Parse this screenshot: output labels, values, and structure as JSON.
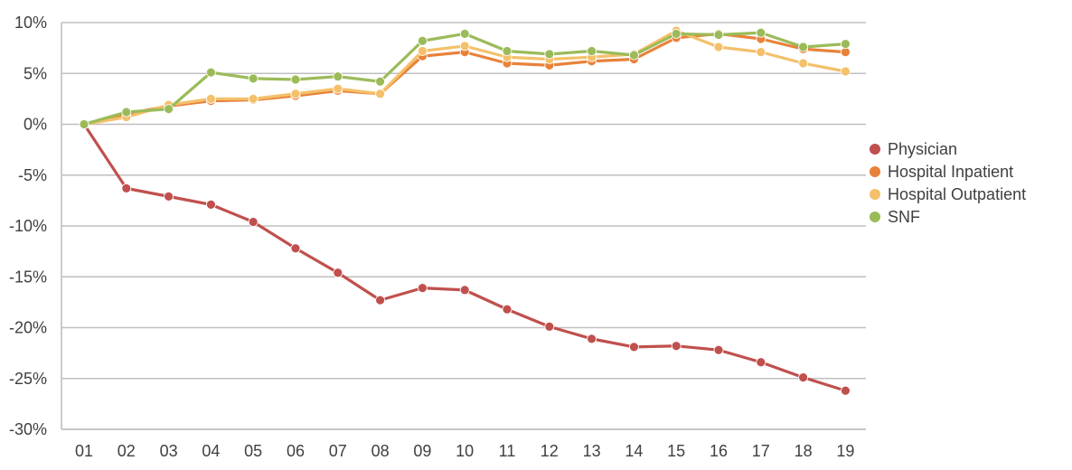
{
  "chart_data": {
    "type": "line",
    "categories": [
      "01",
      "02",
      "03",
      "04",
      "05",
      "06",
      "07",
      "08",
      "09",
      "10",
      "11",
      "12",
      "13",
      "14",
      "15",
      "16",
      "17",
      "18",
      "19"
    ],
    "y_tick_labels": [
      "10%",
      "5%",
      "0%",
      "-5%",
      "-10%",
      "-15%",
      "-20%",
      "-25%",
      "-30%"
    ],
    "ylim": [
      -30,
      10
    ],
    "y_tick_step": 5,
    "grid": "horizontal",
    "legend_position": "right",
    "series": [
      {
        "name": "Physician",
        "color": "#c0504d",
        "values": [
          0,
          -6.3,
          -7.1,
          -7.9,
          -9.6,
          -12.2,
          -14.6,
          -17.3,
          -16.1,
          -16.3,
          -18.2,
          -19.9,
          -21.1,
          -21.9,
          -21.8,
          -22.2,
          -23.4,
          -24.9,
          -26.2
        ]
      },
      {
        "name": "Hospital Inpatient",
        "color": "#e8823a",
        "values": [
          0,
          1.0,
          1.8,
          2.3,
          2.4,
          2.8,
          3.3,
          3.0,
          6.7,
          7.1,
          6.0,
          5.8,
          6.2,
          6.4,
          8.5,
          8.9,
          8.4,
          7.4,
          7.1
        ]
      },
      {
        "name": "Hospital Outpatient",
        "color": "#f4c06a",
        "values": [
          0,
          0.7,
          1.9,
          2.5,
          2.5,
          3.0,
          3.5,
          3.0,
          7.2,
          7.7,
          6.6,
          6.4,
          6.6,
          6.9,
          9.2,
          7.6,
          7.1,
          6.0,
          5.2
        ]
      },
      {
        "name": "SNF",
        "color": "#9bbb59",
        "values": [
          0,
          1.2,
          1.5,
          5.1,
          4.5,
          4.4,
          4.7,
          4.2,
          8.2,
          8.9,
          7.2,
          6.9,
          7.2,
          6.8,
          8.9,
          8.8,
          9.0,
          7.6,
          7.9
        ]
      }
    ]
  }
}
